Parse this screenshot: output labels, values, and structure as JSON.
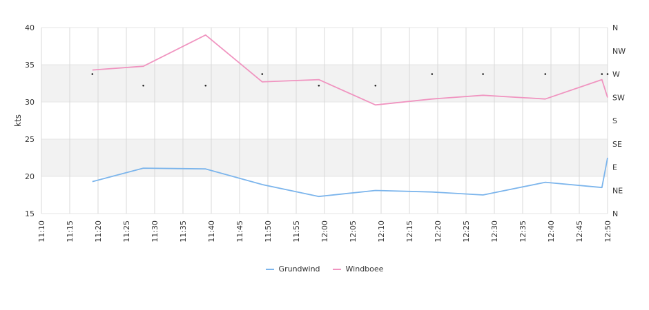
{
  "chart_data": {
    "type": "line",
    "title": "",
    "ylabel": "kts",
    "ylim": [
      15,
      40
    ],
    "yticks": [
      15,
      20,
      25,
      30,
      35,
      40
    ],
    "xticks": [
      "11:10",
      "11:15",
      "11:20",
      "11:25",
      "11:30",
      "11:35",
      "11:40",
      "11:45",
      "11:50",
      "11:55",
      "12:00",
      "12:05",
      "12:10",
      "12:15",
      "12:20",
      "12:25",
      "12:30",
      "12:35",
      "12:40",
      "12:45",
      "12:50"
    ],
    "xlim": [
      "11:10",
      "12:50"
    ],
    "bands": [
      [
        20,
        25
      ],
      [
        30,
        35
      ]
    ],
    "right_axis": {
      "labels": [
        "N",
        "NW",
        "W",
        "SW",
        "S",
        "SE",
        "E",
        "NE",
        "N"
      ]
    },
    "series": [
      {
        "name": "Grundwind",
        "color": "#7cb5ec",
        "x": [
          "11:19",
          "11:28",
          "11:39",
          "11:49",
          "11:59",
          "12:09",
          "12:19",
          "12:28",
          "12:39",
          "12:49",
          "12:50"
        ],
        "values": [
          19.3,
          21.1,
          21.0,
          18.9,
          17.3,
          18.1,
          17.9,
          17.5,
          19.2,
          18.5,
          22.5
        ]
      },
      {
        "name": "Windboee",
        "color": "#f094c0",
        "x": [
          "11:19",
          "11:28",
          "11:39",
          "11:49",
          "11:59",
          "12:09",
          "12:19",
          "12:28",
          "12:39",
          "12:49",
          "12:50"
        ],
        "values": [
          34.3,
          34.8,
          39.0,
          32.7,
          33.0,
          29.6,
          30.4,
          30.9,
          30.4,
          33.0,
          30.6
        ]
      }
    ],
    "direction_points": {
      "x": [
        "11:19",
        "11:28",
        "11:39",
        "11:49",
        "11:59",
        "12:09",
        "12:19",
        "12:28",
        "12:39",
        "12:49",
        "12:50"
      ],
      "values": [
        "W",
        "WSW",
        "WSW",
        "W",
        "WSW",
        "WSW",
        "W",
        "W",
        "W",
        "W",
        "W"
      ]
    },
    "legend_position": "bottom"
  }
}
